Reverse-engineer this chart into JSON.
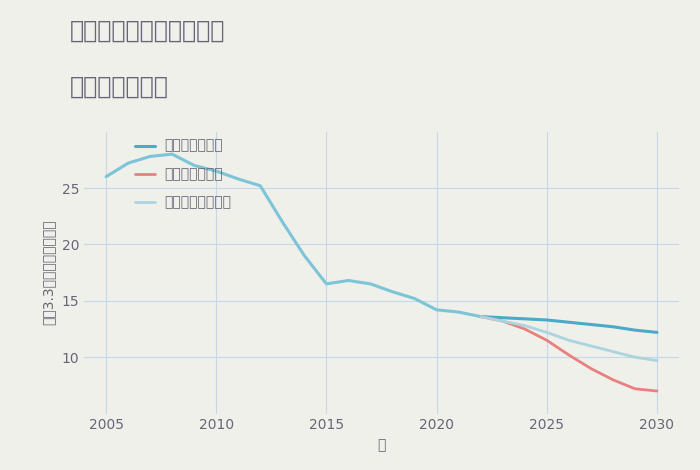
{
  "title_line1": "三重県伊賀市平野東町の",
  "title_line2": "土地の価格推移",
  "xlabel": "年",
  "ylabel": "坪（3.3㎡）単価（万円）",
  "background_color": "#f0f0eb",
  "plot_background_color": "#f0f0eb",
  "grid_color": "#c5d8e8",
  "xlim": [
    2004,
    2031
  ],
  "ylim": [
    5,
    30
  ],
  "yticks": [
    10,
    15,
    20,
    25
  ],
  "xticks": [
    2005,
    2010,
    2015,
    2020,
    2025,
    2030
  ],
  "historical": {
    "years": [
      2005,
      2006,
      2007,
      2008,
      2009,
      2010,
      2011,
      2012,
      2013,
      2014,
      2015,
      2016,
      2017,
      2018,
      2019,
      2020,
      2021,
      2022
    ],
    "values": [
      26.0,
      27.2,
      27.8,
      28.0,
      27.0,
      26.5,
      25.8,
      25.2,
      22.0,
      19.0,
      16.5,
      16.8,
      16.5,
      15.8,
      15.2,
      14.2,
      14.0,
      13.6
    ],
    "color": "#7cc4d8",
    "linewidth": 2.2
  },
  "good": {
    "years": [
      2022,
      2023,
      2024,
      2025,
      2026,
      2027,
      2028,
      2029,
      2030
    ],
    "values": [
      13.6,
      13.5,
      13.4,
      13.3,
      13.1,
      12.9,
      12.7,
      12.4,
      12.2
    ],
    "color": "#4aaac8",
    "linewidth": 2.2,
    "label": "グッドシナリオ"
  },
  "bad": {
    "years": [
      2022,
      2023,
      2024,
      2025,
      2026,
      2027,
      2028,
      2029,
      2030
    ],
    "values": [
      13.6,
      13.2,
      12.5,
      11.5,
      10.2,
      9.0,
      8.0,
      7.2,
      7.0
    ],
    "color": "#e88080",
    "linewidth": 2.0,
    "label": "バッドシナリオ"
  },
  "normal": {
    "years": [
      2022,
      2023,
      2024,
      2025,
      2026,
      2027,
      2028,
      2029,
      2030
    ],
    "values": [
      13.6,
      13.2,
      12.8,
      12.2,
      11.5,
      11.0,
      10.5,
      10.0,
      9.7
    ],
    "color": "#aad4e0",
    "linewidth": 2.0,
    "label": "ノーマルシナリオ"
  },
  "title_fontsize": 17,
  "axis_label_fontsize": 10,
  "tick_fontsize": 10,
  "legend_fontsize": 10,
  "text_color": "#666677"
}
